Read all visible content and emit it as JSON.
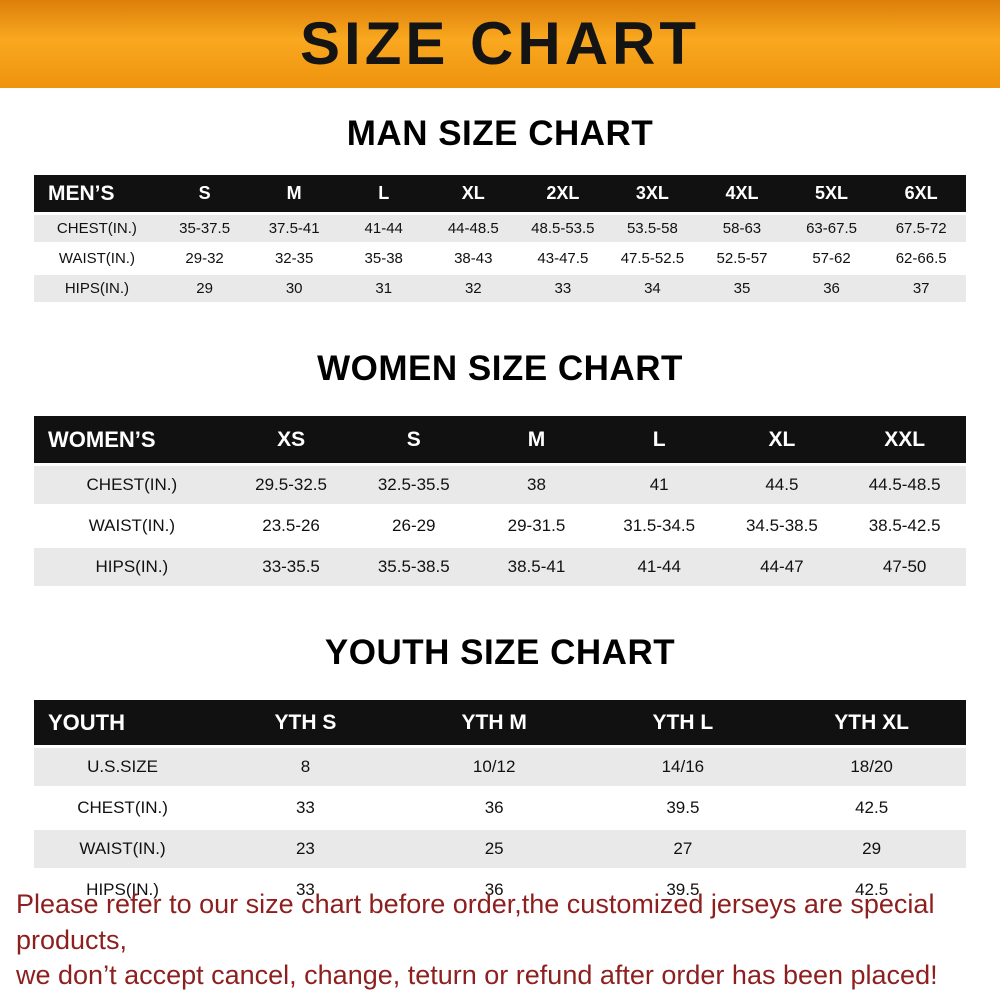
{
  "banner": {
    "title": "SIZE CHART",
    "bg_color_top": "#dd7f0b",
    "bg_color_mid": "#f9a81f"
  },
  "sections": [
    {
      "heading": "MAN SIZE CHART"
    },
    {
      "heading": "WOMEN SIZE CHART"
    },
    {
      "heading": "YOUTH SIZE CHART"
    }
  ],
  "tables": [
    {
      "name": "mens-size-table",
      "header": [
        "MEN’S",
        "S",
        "M",
        "L",
        "XL",
        "2XL",
        "3XL",
        "4XL",
        "5XL",
        "6XL"
      ],
      "rows": [
        [
          "CHEST(IN.)",
          "35-37.5",
          "37.5-41",
          "41-44",
          "44-48.5",
          "48.5-53.5",
          "53.5-58",
          "58-63",
          "63-67.5",
          "67.5-72"
        ],
        [
          "WAIST(IN.)",
          "29-32",
          "32-35",
          "35-38",
          "38-43",
          "43-47.5",
          "47.5-52.5",
          "52.5-57",
          "57-62",
          "62-66.5"
        ],
        [
          "HIPS(IN.)",
          "29",
          "30",
          "31",
          "32",
          "33",
          "34",
          "35",
          "36",
          "37"
        ]
      ]
    },
    {
      "name": "womens-size-table",
      "header": [
        "WOMEN’S",
        "XS",
        "S",
        "M",
        "L",
        "XL",
        "XXL"
      ],
      "rows": [
        [
          "CHEST(IN.)",
          "29.5-32.5",
          "32.5-35.5",
          "38",
          "41",
          "44.5",
          "44.5-48.5"
        ],
        [
          "WAIST(IN.)",
          "23.5-26",
          "26-29",
          "29-31.5",
          "31.5-34.5",
          "34.5-38.5",
          "38.5-42.5"
        ],
        [
          "HIPS(IN.)",
          "33-35.5",
          "35.5-38.5",
          "38.5-41",
          "41-44",
          "44-47",
          "47-50"
        ]
      ]
    },
    {
      "name": "youth-size-table",
      "header": [
        "YOUTH",
        "YTH S",
        "YTH M",
        "YTH L",
        "YTH XL"
      ],
      "rows": [
        [
          "U.S.SIZE",
          "8",
          "10/12",
          "14/16",
          "18/20"
        ],
        [
          "CHEST(IN.)",
          "33",
          "36",
          "39.5",
          "42.5"
        ],
        [
          "WAIST(IN.)",
          "23",
          "25",
          "27",
          "29"
        ],
        [
          "HIPS(IN.)",
          "33",
          "36",
          "39.5",
          "42.5"
        ]
      ]
    }
  ],
  "disclaimer": {
    "line1": "Please refer to our size chart before order,the customized jerseys are special products,",
    "line2": "we don’t accept cancel, change, teturn or refund after order has been placed!",
    "text_color": "#8e1f1f"
  }
}
